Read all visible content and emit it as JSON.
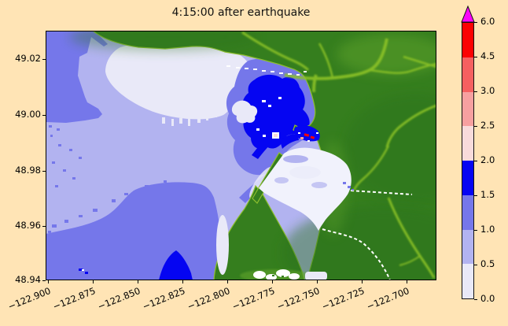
{
  "figure": {
    "title": "4:15:00 after earthquake",
    "background": "#ffe4b5",
    "text_color": "#000000"
  },
  "axes": {
    "x_ticks": [
      "−122.900",
      "−122.875",
      "−122.850",
      "−122.825",
      "−122.800",
      "−122.775",
      "−122.750",
      "−122.725",
      "−122.700"
    ],
    "y_ticks": [
      "49.02",
      "49.00",
      "48.98",
      "48.96",
      "48.94"
    ]
  },
  "colorbar": {
    "tick_labels_top_to_bottom": [
      "6.0",
      "4.5",
      "3.0",
      "2.5",
      "2.0",
      "1.5",
      "1.0",
      "0.5",
      "0.0"
    ],
    "segments_bottom_to_top": [
      {
        "range": "0.0-0.5",
        "color": "#e9e9f8"
      },
      {
        "range": "0.5-1.0",
        "color": "#b2b3f0"
      },
      {
        "range": "1.0-1.5",
        "color": "#7577ea"
      },
      {
        "range": "1.5-2.0",
        "color": "#0505f2"
      },
      {
        "range": "2.0-2.5",
        "color": "#f8dbdb"
      },
      {
        "range": "2.5-3.0",
        "color": "#f7a0a0"
      },
      {
        "range": "3.0-4.5",
        "color": "#f56060"
      },
      {
        "range": "4.5-6.0",
        "color": "#fb0202"
      }
    ],
    "over_arrow_color": "#fa05fa"
  },
  "map_colors": {
    "levels": [
      "#e9e9f8",
      "#b2b3f0",
      "#7577ea",
      "#0505f2",
      "#f8dbdb",
      "#f7a0a0",
      "#f56060",
      "#fb0202"
    ],
    "land": "#357e1e",
    "land_dark": "#2b721b",
    "land_light": "#5ea32a",
    "river": "#8cc225",
    "coast_edge": "#8dbe2e",
    "harbor": "#f1f2fc",
    "white": "#ffffff"
  },
  "chart_data": {
    "type": "heatmap",
    "title": "4:15:00 after earthquake",
    "x_tick_values": [
      -122.9,
      -122.875,
      -122.85,
      -122.825,
      -122.8,
      -122.775,
      -122.75,
      -122.725,
      -122.7
    ],
    "y_tick_values": [
      49.02,
      49.0,
      48.98,
      48.96,
      48.94
    ],
    "x_range": [
      -122.901,
      -122.683
    ],
    "y_range": [
      48.94,
      49.03
    ],
    "colorbar_levels": [
      0.0,
      0.5,
      1.0,
      1.5,
      2.0,
      2.5,
      3.0,
      4.5,
      6.0
    ],
    "colorbar_colors": [
      "#e9e9f8",
      "#b2b3f0",
      "#7577ea",
      "#0505f2",
      "#f8dbdb",
      "#f7a0a0",
      "#f56060",
      "#fb0202"
    ],
    "colorbar_over_color": "#fa05fa",
    "legend_position": "right",
    "grid": false,
    "regions": [
      {
        "name": "open water (dominant western area)",
        "approx_lon": -122.87,
        "approx_lat": 48.97,
        "value_range": [
          0.5,
          1.0
        ]
      },
      {
        "name": "northwest corner band",
        "approx_lon": -122.89,
        "approx_lat": 49.02,
        "value_range": [
          1.0,
          1.5
        ]
      },
      {
        "name": "large pale shallow bank, north-center",
        "approx_lon": -122.83,
        "approx_lat": 49.005,
        "value_range": [
          0.0,
          0.5
        ]
      },
      {
        "name": "southwest offshore region",
        "approx_lon": -122.86,
        "approx_lat": 48.955,
        "value_range": [
          1.0,
          1.5
        ]
      },
      {
        "name": "small deep patch, south-center",
        "approx_lon": -122.835,
        "approx_lat": 48.945,
        "value_range": [
          1.5,
          2.0
        ]
      },
      {
        "name": "central bay (deep blue core)",
        "approx_lon": -122.785,
        "approx_lat": 48.995,
        "value_range": [
          1.5,
          2.0
        ]
      },
      {
        "name": "marina specks at bay east shore",
        "approx_lon": -122.772,
        "approx_lat": 48.991,
        "value_range": [
          2.0,
          6.0
        ]
      },
      {
        "name": "lagoon southeast of central bay",
        "approx_lon": -122.765,
        "approx_lat": 48.985,
        "value_range": [
          0.0,
          0.5
        ]
      },
      {
        "name": "green terrain (land, north and east)",
        "approx_lon": -122.72,
        "approx_lat": 48.98,
        "value_range": null
      }
    ]
  }
}
